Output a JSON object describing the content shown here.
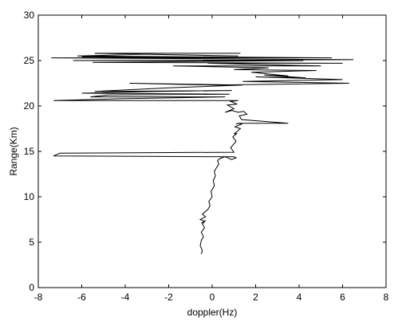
{
  "chart_data": {
    "type": "line",
    "title": "",
    "xlabel": "doppler(Hz)",
    "ylabel": "Range(Km)",
    "xlim": [
      -8,
      8
    ],
    "ylim": [
      0,
      30
    ],
    "xticks": [
      -8,
      -6,
      -4,
      -2,
      0,
      2,
      4,
      6,
      8
    ],
    "yticks": [
      0,
      5,
      10,
      15,
      20,
      25,
      30
    ],
    "xtick_labels": [
      "-8",
      "-6",
      "-4",
      "-2",
      "0",
      "2",
      "4",
      "6",
      "8"
    ],
    "ytick_labels": [
      "0",
      "5",
      "10",
      "15",
      "20",
      "25",
      "30"
    ],
    "grid": false,
    "legend": "none",
    "colors": {
      "line": "#000000",
      "axes": "#000000",
      "background": "#ffffff"
    },
    "series": [
      {
        "x": [
          -0.5,
          -0.45,
          -0.55,
          -0.5,
          -0.4,
          -0.5,
          -0.35,
          -0.45,
          -0.3,
          -0.4,
          -0.5,
          -0.35,
          -0.55,
          -0.3,
          -0.45,
          -0.2,
          -0.1,
          -0.15,
          0.0,
          -0.05,
          0.1,
          0.05,
          0.15,
          0.1,
          0.2,
          0.3,
          0.25,
          0.4,
          0.35,
          0.6,
          0.9,
          1.1,
          1.0,
          -7.3,
          -7.0,
          1.0,
          0.85,
          1.1,
          0.95,
          1.15,
          1.0,
          1.3,
          1.05,
          1.35,
          1.2,
          1.1,
          1.25,
          3.5,
          1.35,
          1.25,
          1.6,
          1.45,
          1.2,
          0.9,
          0.6,
          1.0,
          0.7,
          1.15,
          0.85,
          1.2,
          -7.3,
          -4.2,
          0.6,
          -5.6,
          -4.8,
          0.8,
          -6.0,
          -2.5,
          0.9,
          -5.4,
          -2.0,
          1.4,
          -3.8,
          0.2,
          6.3,
          1.4,
          6.0,
          2.0,
          4.3,
          2.4,
          3.5,
          1.8,
          4.8,
          1.0,
          2.6,
          -1.8,
          5.0,
          -0.2,
          6.0,
          -5.5,
          4.2,
          -6.4,
          6.5,
          -7.4,
          4.0,
          -6.0,
          5.5,
          -6.2,
          -3.0,
          1.2,
          -5.4,
          1.3
        ],
        "y": [
          3.7,
          4.1,
          4.6,
          5.2,
          5.6,
          6.1,
          6.6,
          7.0,
          7.4,
          7.2,
          7.1,
          7.3,
          7.5,
          7.8,
          8.1,
          8.6,
          9.0,
          9.5,
          10.0,
          10.6,
          11.2,
          11.8,
          12.3,
          12.8,
          13.2,
          13.6,
          14.0,
          14.3,
          14.2,
          14.4,
          14.1,
          14.3,
          14.4,
          14.5,
          14.8,
          14.9,
          15.4,
          16.1,
          16.6,
          17.0,
          16.9,
          17.5,
          17.7,
          18.0,
          18.1,
          18.0,
          18.1,
          18.1,
          18.5,
          18.9,
          19.1,
          19.4,
          19.3,
          19.5,
          19.3,
          19.7,
          20.1,
          20.2,
          20.5,
          20.6,
          20.6,
          20.8,
          21.0,
          21.0,
          21.2,
          21.3,
          21.4,
          21.6,
          21.7,
          21.6,
          22.0,
          22.3,
          22.5,
          22.3,
          22.5,
          22.7,
          22.9,
          23.2,
          23.1,
          23.4,
          23.3,
          23.7,
          23.9,
          24.0,
          24.2,
          24.4,
          24.4,
          24.7,
          24.7,
          24.8,
          25.0,
          25.0,
          25.1,
          25.3,
          25.3,
          25.4,
          25.3,
          25.5,
          25.7,
          25.5,
          25.8,
          25.8
        ]
      }
    ]
  }
}
